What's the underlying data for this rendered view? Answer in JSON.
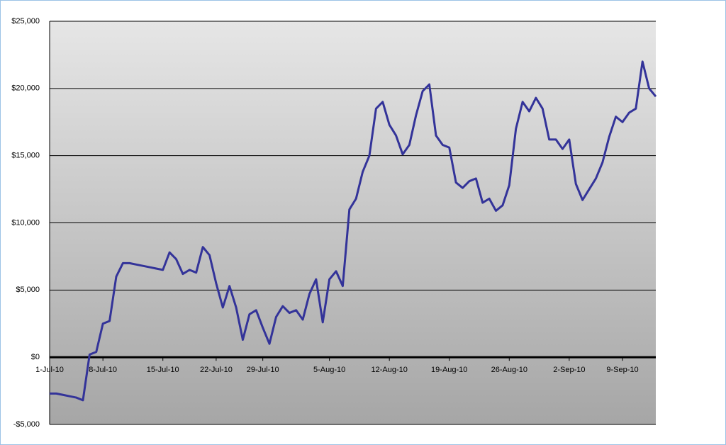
{
  "chart_data": {
    "type": "line",
    "categories": [
      "1-Jul-10",
      null,
      null,
      null,
      null,
      null,
      null,
      null,
      "8-Jul-10",
      null,
      null,
      null,
      null,
      null,
      null,
      null,
      null,
      "15-Jul-10",
      null,
      null,
      null,
      null,
      null,
      null,
      null,
      "22-Jul-10",
      null,
      null,
      null,
      null,
      null,
      null,
      "29-Jul-10",
      null,
      null,
      null,
      null,
      null,
      null,
      null,
      null,
      null,
      "5-Aug-10",
      null,
      null,
      null,
      null,
      null,
      null,
      null,
      null,
      "12-Aug-10",
      null,
      null,
      null,
      null,
      null,
      null,
      null,
      null,
      "19-Aug-10",
      null,
      null,
      null,
      null,
      null,
      null,
      null,
      null,
      "26-Aug-10",
      null,
      null,
      null,
      null,
      null,
      null,
      null,
      null,
      "2-Sep-10",
      null,
      null,
      null,
      null,
      null,
      null,
      null,
      "9-Sep-10",
      null,
      null,
      null,
      null,
      null
    ],
    "series": [
      {
        "color": "#333399",
        "values": [
          -2700,
          -2700,
          -2800,
          -2900,
          -3000,
          -3200,
          200,
          400,
          2500,
          2700,
          6000,
          7000,
          7000,
          6900,
          6800,
          6700,
          6600,
          6500,
          7800,
          7300,
          6200,
          6500,
          6300,
          8200,
          7600,
          5500,
          3700,
          5300,
          3700,
          1300,
          3200,
          3500,
          2200,
          1000,
          3000,
          3800,
          3300,
          3500,
          2800,
          4700,
          5800,
          2600,
          5800,
          6400,
          5300,
          11000,
          11800,
          13800,
          15000,
          18500,
          19000,
          17300,
          16500,
          15100,
          15800,
          18000,
          19800,
          20300,
          16500,
          15800,
          15600,
          13000,
          12600,
          13100,
          13300,
          11500,
          11800,
          10900,
          11300,
          12800,
          17000,
          19000,
          18300,
          19300,
          18500,
          16200,
          16200,
          15500,
          16200,
          12900,
          11700,
          12500,
          13300,
          14500,
          16400,
          17900,
          17500,
          18200,
          18500,
          22000,
          20000,
          19400
        ]
      }
    ],
    "ylim": [
      -5000,
      25000
    ],
    "yticks": [
      {
        "value": -5000,
        "label": "-$5,000"
      },
      {
        "value": 0,
        "label": "$0"
      },
      {
        "value": 5000,
        "label": "$5,000"
      },
      {
        "value": 10000,
        "label": "$10,000"
      },
      {
        "value": 15000,
        "label": "$15,000"
      },
      {
        "value": 20000,
        "label": "$20,000"
      },
      {
        "value": 25000,
        "label": "$25,000"
      }
    ],
    "grid": true
  }
}
